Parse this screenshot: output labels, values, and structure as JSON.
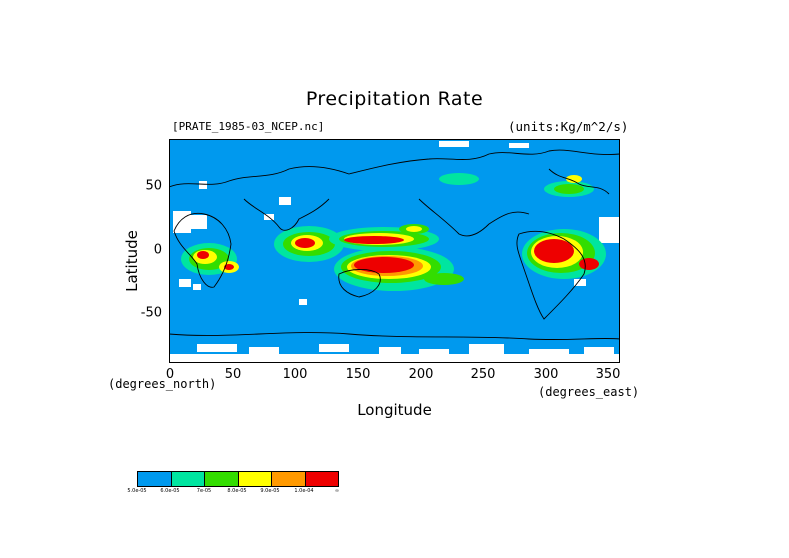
{
  "title": "Precipitation Rate",
  "subtitle": "[PRATE_1985-03_NCEP.nc]",
  "units": "(units:Kg/m^2/s)",
  "xlabel": "Longitude",
  "ylabel": "Latitude",
  "x_unit_label": "(degrees_north)",
  "y_unit_label": "(degrees_east)",
  "x_ticks": [
    "0",
    "50",
    "100",
    "150",
    "200",
    "250",
    "300",
    "350"
  ],
  "y_ticks": [
    "50",
    "0",
    "-50"
  ],
  "colors": {
    "ocean": "#0099ee",
    "land_missing": "#ffffff",
    "c2": "#00e5a0",
    "c3": "#33dd00",
    "c4": "#ffff00",
    "c5": "#ff9900",
    "c6": "#ee0000"
  },
  "legend": {
    "colors": [
      "#0099ee",
      "#00e5a0",
      "#33dd00",
      "#ffff00",
      "#ff9900",
      "#ee0000"
    ],
    "labels": [
      "5.0e-05",
      "6.0e-05",
      "7e-05",
      "8.0e-05",
      "9.0e-05",
      "1.0e-04",
      "∞"
    ]
  },
  "chart_data": {
    "type": "heatmap",
    "title": "Precipitation Rate",
    "subtitle": "[PRATE_1985-03_NCEP.nc]",
    "units": "(units:Kg/m^2/s)",
    "xlabel": "Longitude",
    "ylabel": "Latitude",
    "xlim": [
      0,
      360
    ],
    "ylim": [
      -90,
      90
    ],
    "x_ticks": [
      0,
      50,
      100,
      150,
      200,
      250,
      300,
      350
    ],
    "y_ticks": [
      50,
      0,
      -50
    ],
    "levels": [
      "5.0e-05",
      "6.0e-05",
      "7e-05",
      "8.0e-05",
      "9.0e-05",
      "1.0e-04"
    ],
    "high_precip_regions": [
      {
        "lon": [
          135,
          215
        ],
        "lat": [
          -25,
          -5
        ],
        "level": "1.0e-04"
      },
      {
        "lon": [
          135,
          190
        ],
        "lat": [
          0,
          10
        ],
        "level": "1.0e-04"
      },
      {
        "lon": [
          285,
          320
        ],
        "lat": [
          -20,
          5
        ],
        "level": "1.0e-04"
      },
      {
        "lon": [
          95,
          125
        ],
        "lat": [
          -10,
          5
        ],
        "level": "1.0e-04"
      },
      {
        "lon": [
          20,
          35
        ],
        "lat": [
          -15,
          0
        ],
        "level": "1.0e-04"
      }
    ]
  }
}
